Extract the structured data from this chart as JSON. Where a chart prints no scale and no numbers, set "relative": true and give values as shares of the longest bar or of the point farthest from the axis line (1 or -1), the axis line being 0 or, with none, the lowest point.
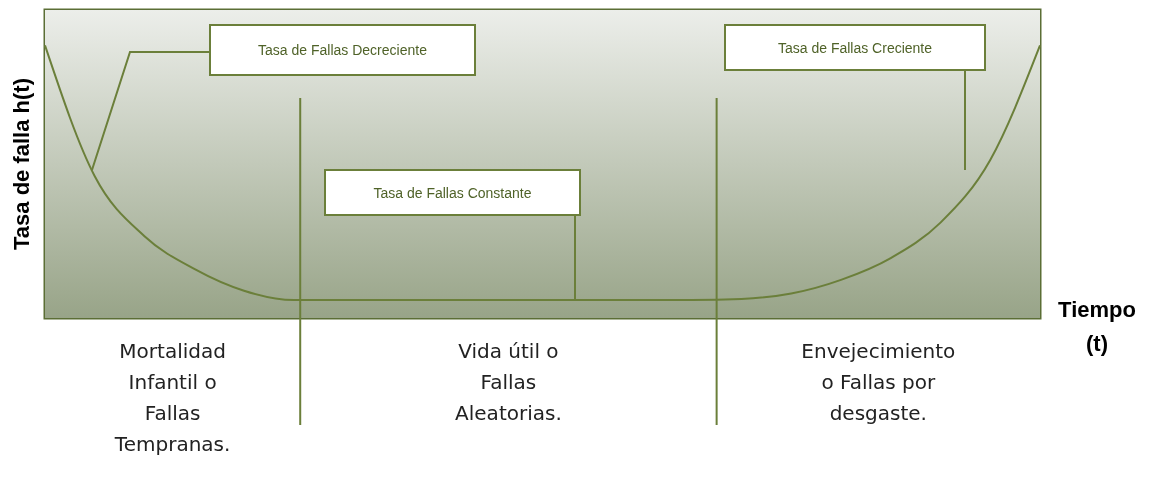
{
  "chart_data": {
    "type": "line",
    "relative": true,
    "ylabel": "Tasa de falla h(t)",
    "xlabel": "Tiempo (t)",
    "color": "#6b7f3a",
    "categories": [
      null,
      null,
      null,
      null,
      null,
      null,
      null,
      null,
      null,
      null,
      null,
      null,
      null,
      null,
      null,
      null,
      null,
      null,
      null,
      null,
      null
    ],
    "values": [
      1,
      0.52,
      0.3,
      0.18,
      0.1,
      0.066,
      0.066,
      0.066,
      0.066,
      0.066,
      0.066,
      0.066,
      0.066,
      0.066,
      0.07,
      0.09,
      0.14,
      0.22,
      0.35,
      0.58,
      1
    ],
    "annotations": [
      "Tasa de Fallas Decreciente",
      "Tasa de Fallas Constante",
      "Tasa de Fallas Creciente",
      "Mortalidad Infantil o Fallas Tempranas.",
      "Vida útil o Fallas Aleatorias.",
      "Envejecimiento o Fallas por desgaste."
    ]
  }
}
